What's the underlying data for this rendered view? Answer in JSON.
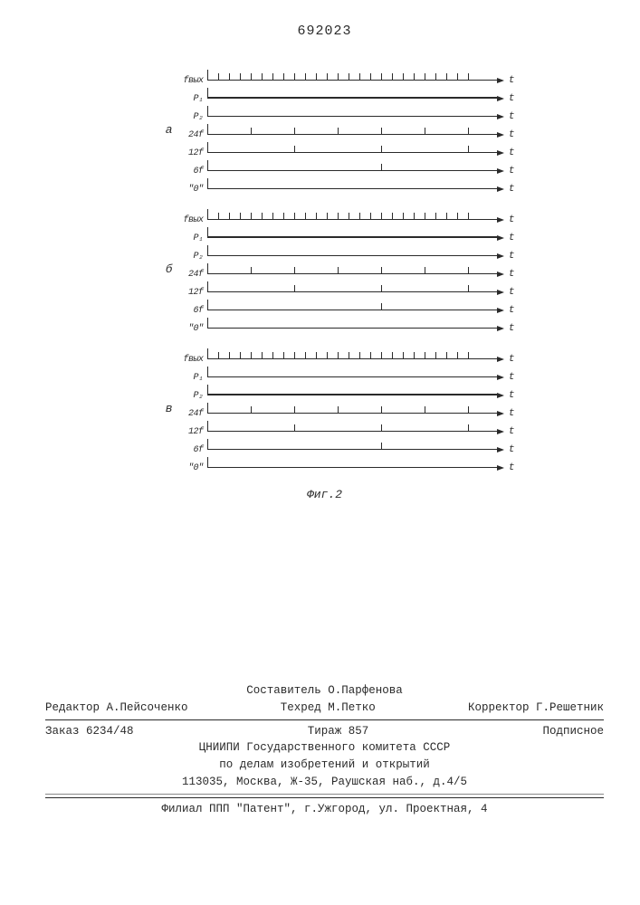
{
  "doc_number": "692023",
  "figure_caption": "Фиг.2",
  "t_axis_label": "t",
  "signal_row_labels": [
    "fвых",
    "P₁",
    "P₂",
    "24f",
    "12f",
    "6f",
    "\"0\""
  ],
  "groups": [
    {
      "label": "а",
      "rows": [
        {
          "ticks_n": 24,
          "tick_every": 1,
          "thick": false
        },
        {
          "ticks_n": 0,
          "tick_every": 1,
          "thick": true
        },
        {
          "ticks_n": 0,
          "tick_every": 1,
          "thick": false
        },
        {
          "ticks_n": 24,
          "tick_every": 4,
          "thick": false
        },
        {
          "ticks_n": 24,
          "tick_every": 8,
          "thick": false
        },
        {
          "ticks_n": 24,
          "tick_every": 16,
          "thick": false
        },
        {
          "ticks_n": 0,
          "tick_every": 1,
          "thick": false
        }
      ]
    },
    {
      "label": "б",
      "rows": [
        {
          "ticks_n": 24,
          "tick_every": 1,
          "thick": false
        },
        {
          "ticks_n": 0,
          "tick_every": 1,
          "thick": true
        },
        {
          "ticks_n": 0,
          "tick_every": 1,
          "thick": false
        },
        {
          "ticks_n": 24,
          "tick_every": 4,
          "thick": false
        },
        {
          "ticks_n": 24,
          "tick_every": 8,
          "thick": false
        },
        {
          "ticks_n": 24,
          "tick_every": 16,
          "thick": false
        },
        {
          "ticks_n": 0,
          "tick_every": 1,
          "thick": false
        }
      ]
    },
    {
      "label": "в",
      "rows": [
        {
          "ticks_n": 24,
          "tick_every": 1,
          "thick": false
        },
        {
          "ticks_n": 0,
          "tick_every": 1,
          "thick": false
        },
        {
          "ticks_n": 0,
          "tick_every": 1,
          "thick": true
        },
        {
          "ticks_n": 24,
          "tick_every": 4,
          "thick": false
        },
        {
          "ticks_n": 24,
          "tick_every": 8,
          "thick": false
        },
        {
          "ticks_n": 24,
          "tick_every": 16,
          "thick": false
        },
        {
          "ticks_n": 0,
          "tick_every": 1,
          "thick": false
        }
      ]
    }
  ],
  "colophon": {
    "compiler_label": "Составитель",
    "compiler_name": "О.Парфенова",
    "editor_label": "Редактор",
    "editor_name": "А.Пейсоченко",
    "techred_label": "Техред",
    "techred_name": "М.Петко",
    "corrector_label": "Корректор",
    "corrector_name": "Г.Решетник",
    "order_label": "Заказ",
    "order_value": "6234/48",
    "tirage_label": "Тираж",
    "tirage_value": "857",
    "subscr": "Подписное",
    "org_line1": "ЦНИИПИ Государственного комитета СССР",
    "org_line2": "по делам изобретений и открытий",
    "org_addr": "113035, Москва, Ж-35, Раушская наб., д.4/5",
    "branch": "Филиал ППП \"Патент\", г.Ужгород, ул. Проектная, 4"
  }
}
